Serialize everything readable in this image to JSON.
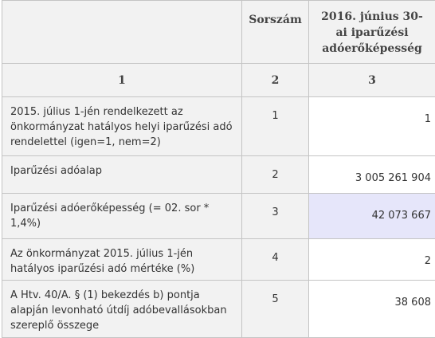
{
  "header": {
    "col1": "",
    "col2": "Sorszám",
    "col3": "2016. június 30-ai iparűzési adóerőképesség"
  },
  "column_numbers": [
    "1",
    "2",
    "3"
  ],
  "rows": [
    {
      "label": "2015. július 1-jén rendelkezett az önkormányzat hatályos helyi iparűzési adó rendelettel (igen=1, nem=2)",
      "serial": "1",
      "value": "1"
    },
    {
      "label": "Iparűzési adóalap",
      "serial": "2",
      "value": "3 005 261 904"
    },
    {
      "label": "Iparűzési adóerőképesség (= 02. sor * 1,4%)",
      "serial": "3",
      "value": "42 073 667"
    },
    {
      "label": "Az önkormányzat 2015. július 1-jén hatályos iparűzési adó mértéke (%)",
      "serial": "4",
      "value": "2"
    },
    {
      "label": "A Htv. 40/A. § (1) bekezdés b) pontja alapján levonható útdíj adóbevallásokban szereplő összege",
      "serial": "5",
      "value": "38 608"
    }
  ],
  "colors": {
    "header_bg": "#f2f2f2",
    "highlight_cell": "#e6e6fa",
    "border": "#c4c4c4"
  }
}
